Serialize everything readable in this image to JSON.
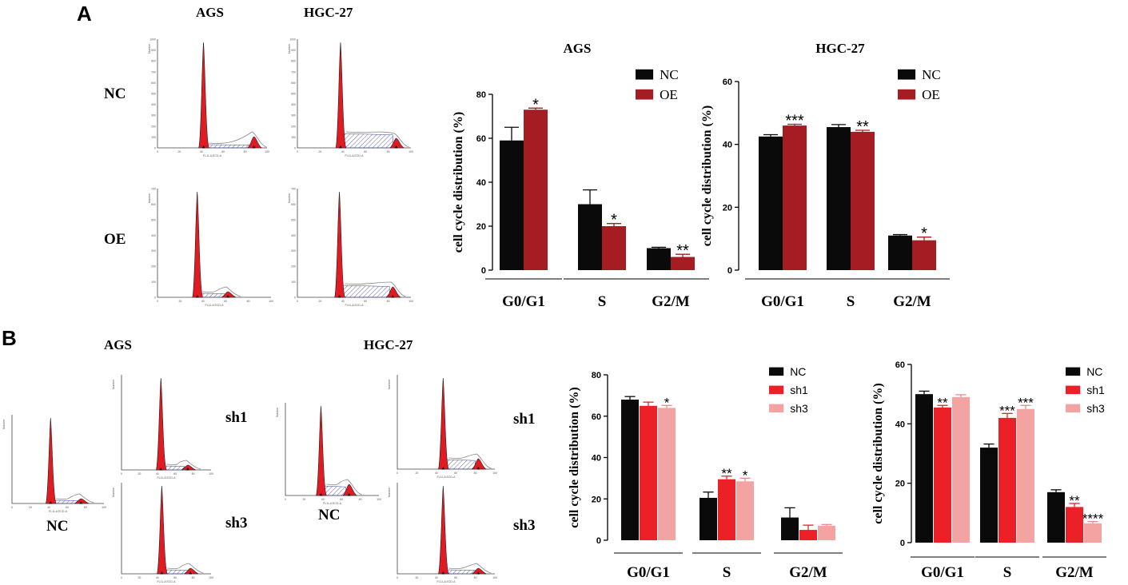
{
  "panel_a": {
    "letter": "A",
    "histograms": {
      "col_labels": [
        "AGS",
        "HGC-27"
      ],
      "row_labels": [
        "NC",
        "OE"
      ],
      "axis_y_label": "Number",
      "axis_x_label": "FL11-A ECD-A",
      "x_ticks": [
        "0",
        "20",
        "40",
        "60",
        "80",
        "100"
      ],
      "y_ticks_ags_nc": [
        "0",
        "100",
        "200",
        "300",
        "400",
        "500",
        "600",
        "700",
        "800",
        "900",
        "1000"
      ],
      "y_ticks_hgc_nc": [
        "0",
        "100",
        "200",
        "300",
        "400",
        "500",
        "600",
        "700",
        "800",
        "900",
        "1000"
      ],
      "y_ticks_ags_oe": [
        "0",
        "100",
        "200",
        "300",
        "400",
        "500",
        "600",
        "700"
      ],
      "y_ticks_hgc_oe": [
        "0",
        "100",
        "200",
        "300",
        "400",
        "500",
        "600",
        "700"
      ]
    }
  },
  "panel_b": {
    "letter": "B",
    "histograms": {
      "group_labels": [
        "AGS",
        "HGC-27"
      ],
      "nc_label": "NC",
      "sh_labels": [
        "sh1",
        "sh3"
      ]
    }
  },
  "colors": {
    "black": "#0a0a0a",
    "dark_red": "#a51c22",
    "red": "#ec2027",
    "pink": "#f4a3a3",
    "histo_red": "#e11b22",
    "hatch": "#3b3f9a"
  },
  "chart_data": [
    {
      "id": "a_ags",
      "type": "bar",
      "title": "AGS",
      "xlabel": "",
      "ylabel": "cell cycle distribution (%)",
      "categories": [
        "G0/G1",
        "S",
        "G2/M"
      ],
      "ylim": [
        0,
        80
      ],
      "yticks": [
        "0",
        "20",
        "40",
        "60",
        "80"
      ],
      "series": [
        {
          "name": "NC",
          "color": "#0a0a0a",
          "values": [
            59,
            30,
            10
          ],
          "errors": [
            6,
            6.5,
            0.4
          ],
          "signif": [
            "",
            "",
            ""
          ]
        },
        {
          "name": "OE",
          "color": "#a51c22",
          "values": [
            73,
            20,
            6
          ],
          "errors": [
            0.7,
            1.2,
            1.2
          ],
          "signif": [
            "*",
            "*",
            "**"
          ]
        }
      ],
      "legend": "top-right"
    },
    {
      "id": "a_hgc",
      "type": "bar",
      "title": "HGC-27",
      "xlabel": "",
      "ylabel": "cell cycle distribution (%)",
      "categories": [
        "G0/G1",
        "S",
        "G2/M"
      ],
      "ylim": [
        0,
        60
      ],
      "yticks": [
        "0",
        "20",
        "40",
        "60"
      ],
      "series": [
        {
          "name": "NC",
          "color": "#0a0a0a",
          "values": [
            42.5,
            45.5,
            11
          ],
          "errors": [
            0.6,
            0.8,
            0.3
          ],
          "signif": [
            "",
            "",
            ""
          ]
        },
        {
          "name": "OE",
          "color": "#a51c22",
          "values": [
            46,
            44,
            9.5
          ],
          "errors": [
            0.4,
            0.5,
            1
          ],
          "signif": [
            "***",
            "**",
            "*"
          ]
        }
      ],
      "legend": "top-right"
    },
    {
      "id": "b_ags",
      "type": "bar",
      "title": "",
      "xlabel": "",
      "ylabel": "cell cycle distribution (%)",
      "categories": [
        "G0/G1",
        "S",
        "G2/M"
      ],
      "ylim": [
        0,
        80
      ],
      "yticks": [
        "0",
        "20",
        "40",
        "60",
        "80"
      ],
      "series": [
        {
          "name": "NC",
          "color": "#0a0a0a",
          "values": [
            68,
            20.5,
            11
          ],
          "errors": [
            1.5,
            2.8,
            4.7
          ],
          "signif": [
            "",
            "",
            ""
          ]
        },
        {
          "name": "sh1",
          "color": "#ec2027",
          "values": [
            65,
            29.5,
            5
          ],
          "errors": [
            1.8,
            1.5,
            2.3
          ],
          "signif": [
            "",
            "**",
            ""
          ]
        },
        {
          "name": "sh3",
          "color": "#f4a3a3",
          "values": [
            64,
            28.5,
            7
          ],
          "errors": [
            1.2,
            1.5,
            0.6
          ],
          "signif": [
            "*",
            "*",
            ""
          ]
        }
      ],
      "legend": "top-right"
    },
    {
      "id": "b_hgc",
      "type": "bar",
      "title": "",
      "xlabel": "",
      "ylabel": "cell cycle distribution (%)",
      "categories": [
        "G0/G1",
        "S",
        "G2/M"
      ],
      "ylim": [
        0,
        60
      ],
      "yticks": [
        "0",
        "20",
        "40",
        "60"
      ],
      "series": [
        {
          "name": "NC",
          "color": "#0a0a0a",
          "values": [
            50,
            32,
            17
          ],
          "errors": [
            1,
            1.2,
            0.8
          ],
          "signif": [
            "",
            "",
            ""
          ]
        },
        {
          "name": "sh1",
          "color": "#ec2027",
          "values": [
            45.5,
            42,
            12
          ],
          "errors": [
            0.7,
            1.5,
            1.2
          ],
          "signif": [
            "**",
            "***",
            "**"
          ]
        },
        {
          "name": "sh3",
          "color": "#f4a3a3",
          "values": [
            49,
            45,
            6.5
          ],
          "errors": [
            0.8,
            1.2,
            0.6
          ],
          "signif": [
            "",
            "***",
            "****"
          ]
        }
      ],
      "legend": "top-right"
    }
  ]
}
